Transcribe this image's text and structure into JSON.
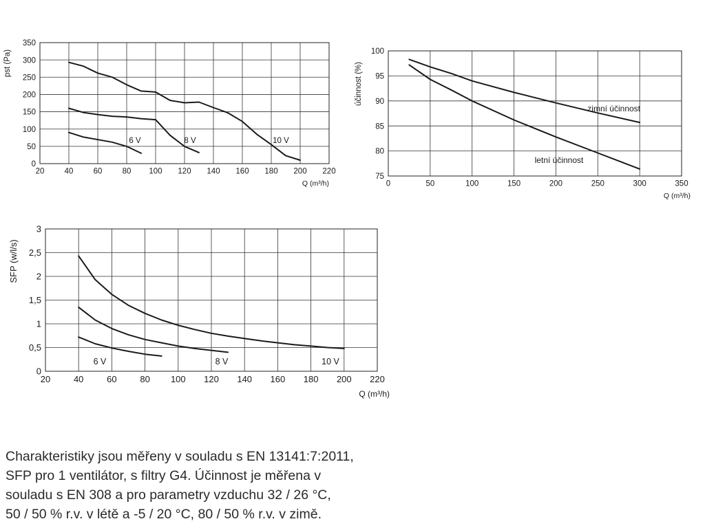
{
  "chart_data": [
    {
      "type": "line",
      "ylabel": "pst (Pa)",
      "xlabel": "Q (m³/h)",
      "xlim": [
        20,
        220
      ],
      "ylim": [
        0,
        350
      ],
      "xticks": [
        "20",
        "40",
        "60",
        "80",
        "100",
        "120",
        "140",
        "160",
        "180",
        "200",
        "220"
      ],
      "yticks": [
        "0",
        "50",
        "100",
        "150",
        "200",
        "250",
        "300",
        "350"
      ],
      "grid": true,
      "series": [
        {
          "name": "6 V",
          "x": [
            40,
            50,
            70,
            80,
            90
          ],
          "y": [
            90,
            77,
            62,
            50,
            30
          ]
        },
        {
          "name": "8 V",
          "x": [
            40,
            50,
            60,
            70,
            80,
            90,
            100,
            110,
            120,
            130
          ],
          "y": [
            160,
            148,
            142,
            137,
            135,
            130,
            127,
            82,
            50,
            32
          ]
        },
        {
          "name": "10 V",
          "x": [
            40,
            50,
            60,
            70,
            80,
            90,
            100,
            110,
            120,
            130,
            140,
            150,
            160,
            170,
            180,
            190,
            200
          ],
          "y": [
            293,
            282,
            262,
            250,
            228,
            210,
            207,
            183,
            176,
            178,
            162,
            147,
            122,
            85,
            55,
            23,
            10
          ]
        }
      ],
      "annotations": [
        "6 V",
        "8 V",
        "10 V"
      ]
    },
    {
      "type": "line",
      "ylabel": "účinnost (%)",
      "xlabel": "Q (m³/h)",
      "xlim": [
        0,
        350
      ],
      "ylim": [
        75,
        100
      ],
      "xticks": [
        "0",
        "50",
        "100",
        "150",
        "200",
        "250",
        "300",
        "350"
      ],
      "yticks": [
        "75",
        "80",
        "85",
        "90",
        "95",
        "100"
      ],
      "grid": true,
      "series": [
        {
          "name": "zimní účinnost",
          "x": [
            25,
            50,
            75,
            100,
            150,
            200,
            250,
            300
          ],
          "y": [
            98.3,
            96.8,
            95.5,
            94.0,
            91.7,
            89.6,
            87.6,
            85.7
          ]
        },
        {
          "name": "letní účinnost",
          "x": [
            25,
            50,
            75,
            100,
            150,
            200,
            250,
            300
          ],
          "y": [
            97.2,
            94.3,
            92.2,
            90.0,
            86.2,
            82.8,
            79.6,
            76.4
          ]
        }
      ],
      "annotations": [
        "zimní účinnost",
        "letní účinnost"
      ]
    },
    {
      "type": "line",
      "ylabel": "SFP (w/l/s)",
      "xlabel": "Q (m³/h)",
      "xlim": [
        20,
        220
      ],
      "ylim": [
        0,
        3
      ],
      "xticks": [
        "20",
        "40",
        "60",
        "80",
        "100",
        "120",
        "140",
        "160",
        "180",
        "200",
        "220"
      ],
      "yticks": [
        "0",
        "0,5",
        "1",
        "1,5",
        "2",
        "2,5",
        "3"
      ],
      "grid": true,
      "series": [
        {
          "name": "6 V",
          "x": [
            40,
            50,
            60,
            70,
            80,
            90
          ],
          "y": [
            0.72,
            0.58,
            0.49,
            0.42,
            0.36,
            0.32
          ]
        },
        {
          "name": "8 V",
          "x": [
            40,
            50,
            60,
            70,
            80,
            90,
            100,
            110,
            120,
            130
          ],
          "y": [
            1.35,
            1.08,
            0.9,
            0.77,
            0.67,
            0.6,
            0.53,
            0.48,
            0.44,
            0.4
          ]
        },
        {
          "name": "10 V",
          "x": [
            40,
            50,
            60,
            70,
            80,
            90,
            100,
            110,
            120,
            130,
            140,
            150,
            160,
            170,
            180,
            190,
            200
          ],
          "y": [
            2.43,
            1.93,
            1.62,
            1.39,
            1.22,
            1.08,
            0.97,
            0.88,
            0.8,
            0.74,
            0.69,
            0.64,
            0.6,
            0.56,
            0.53,
            0.5,
            0.48
          ]
        }
      ],
      "annotations": [
        "6 V",
        "8 V",
        "10 V"
      ]
    }
  ],
  "caption": {
    "lines": [
      "Charakteristiky jsou měřeny v souladu s EN 13141:7:2011,",
      "SFP pro 1 ventilátor, s filtry G4. Účinnost je měřena v",
      "souladu s EN 308 a pro parametry vzduchu 32 / 26 °C,",
      "50 / 50 % r.v. v létě a -5 / 20 °C, 80 / 50 % r.v. v zimě."
    ]
  }
}
